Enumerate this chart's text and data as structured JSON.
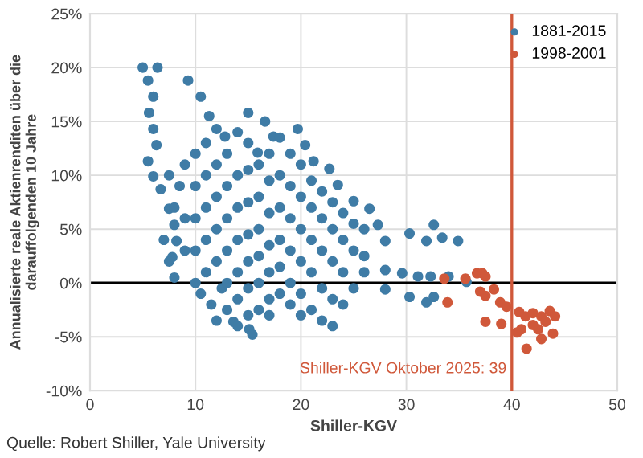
{
  "chart_data": {
    "type": "scatter",
    "xlabel": "Shiller-KGV",
    "ylabel": "Annualisierte reale Aktienrenditen über die\ndarauffolgenden 10 Jahre",
    "xlim": [
      0,
      50
    ],
    "xticks": [
      0,
      10,
      20,
      30,
      40,
      50
    ],
    "ylim": [
      -10,
      25
    ],
    "yticks": [
      {
        "value": -10,
        "label": "-10%"
      },
      {
        "value": -5,
        "label": "-5%"
      },
      {
        "value": 0,
        "label": "0%"
      },
      {
        "value": 5,
        "label": "5%"
      },
      {
        "value": 10,
        "label": "10%"
      },
      {
        "value": 15,
        "label": "15%"
      },
      {
        "value": 20,
        "label": "20%"
      },
      {
        "value": 25,
        "label": "25%"
      }
    ],
    "grid": true,
    "legend": "top right",
    "marker": "circle",
    "ref_lines": [
      {
        "axis": "y",
        "value": 0,
        "color": "#000000"
      },
      {
        "axis": "x",
        "value": 40,
        "color": "#d0583a"
      }
    ],
    "annotations": [
      "Quelle: Robert Shiller, Yale University",
      {
        "text": "Shiller-KGV Oktober 2025: 39",
        "x": 40,
        "y": -8
      }
    ],
    "series": [
      {
        "name": "1881-2015",
        "color": "#3f7ca6",
        "x": [
          5,
          6.4,
          5.5,
          6,
          5.6,
          6,
          6.3,
          5.5,
          6,
          6.7,
          7.5,
          8,
          8.2,
          7.8,
          9.3,
          10.5,
          11.3,
          12,
          12.8,
          15,
          16.6,
          17.4,
          15.9,
          19.7,
          20.4,
          21.2,
          22.7,
          23.5,
          25,
          26.5,
          27.3,
          28,
          30.3,
          31.9,
          32.6,
          33.4,
          34.9,
          28,
          29.6,
          31.1,
          32.3,
          34,
          35.7,
          30.3,
          31.9,
          32.6,
          28,
          13.6,
          15.1,
          15.4,
          7.5,
          8,
          8.5,
          7,
          7.5,
          8,
          9,
          9,
          9,
          10,
          10,
          10,
          10,
          10,
          10.5,
          11,
          11,
          11,
          11,
          11,
          11.5,
          12,
          12,
          12,
          12,
          12,
          12.5,
          13,
          13,
          13,
          13,
          13,
          13,
          14,
          14,
          14,
          14,
          14,
          14,
          14,
          15,
          15,
          15,
          15,
          15,
          15,
          15,
          16,
          16,
          16,
          16,
          16,
          16,
          17,
          17,
          17,
          17,
          17,
          17,
          17,
          18,
          18,
          18,
          18,
          18,
          18,
          19,
          19,
          19,
          19,
          19,
          19,
          20,
          20,
          20,
          20,
          20,
          20,
          21,
          21,
          21,
          21,
          21,
          22,
          22,
          22,
          22,
          22,
          23,
          23,
          23,
          23,
          23,
          24,
          24,
          24,
          24,
          25,
          25,
          25,
          26,
          26,
          26
        ],
        "values": [
          20,
          20,
          18.8,
          17.3,
          15.8,
          14.3,
          12.8,
          11.3,
          9.9,
          8.7,
          6.9,
          5.4,
          3.9,
          2.4,
          18.8,
          17.3,
          15.5,
          14.3,
          13.6,
          15.8,
          15,
          13.6,
          12.1,
          14.3,
          12.8,
          11.3,
          10.6,
          9.1,
          7.6,
          6.9,
          5.4,
          3.9,
          4.6,
          3.9,
          5.4,
          4.2,
          3.9,
          1.2,
          0.9,
          0.6,
          0.6,
          0.6,
          0.1,
          -1.3,
          -1.8,
          -1.3,
          -0.6,
          -3.6,
          -4.3,
          -4.8,
          10,
          7,
          9,
          4,
          2,
          0.5,
          11,
          6,
          3,
          12,
          9,
          6,
          3,
          0,
          -1,
          13,
          10,
          7,
          4,
          1,
          -2,
          -3.5,
          11,
          8,
          5,
          2,
          -0.5,
          12,
          9,
          6,
          3,
          0,
          -2.5,
          14,
          10,
          7,
          4,
          1,
          -1.5,
          -4,
          13,
          10.5,
          7.5,
          4.5,
          2,
          -0.5,
          -3,
          11,
          8,
          5,
          2.5,
          0,
          -2.5,
          12,
          9.5,
          6.5,
          3.5,
          1,
          -1.5,
          -3,
          13.5,
          10,
          7,
          4,
          1.5,
          -1,
          12,
          9,
          6,
          3,
          0,
          -2,
          11,
          8,
          5,
          2,
          -1,
          -3,
          9.5,
          7,
          4,
          1,
          -2.5,
          8.5,
          6,
          3,
          -0.5,
          -3.5,
          7.5,
          5,
          2,
          -1.5,
          -4,
          6.5,
          4,
          1,
          -2,
          5.5,
          3,
          -0.5,
          5,
          2.5,
          1
        ]
      },
      {
        "name": "1998-2001",
        "color": "#d0583a",
        "x": [
          33.6,
          33.9,
          35.6,
          36.7,
          37.2,
          37.5,
          37,
          37.5,
          38.3,
          38.9,
          39.5,
          37.5,
          39,
          40.7,
          41.3,
          42,
          42.3,
          42.8,
          43.6,
          44.1,
          40.5,
          40.9,
          41.4,
          42.5,
          42.8,
          43.9,
          42,
          43.2
        ],
        "values": [
          0.4,
          -1.8,
          0.4,
          0.9,
          0.9,
          0.6,
          -0.8,
          -1.2,
          -0.6,
          -1.8,
          -2.2,
          -3.6,
          -3.8,
          -2.7,
          -3.1,
          -2.8,
          null,
          -3.1,
          -2.6,
          -3.1,
          -4.6,
          -4.3,
          -6.1,
          -4.3,
          -5.2,
          -4.7,
          -3.9,
          -3.6
        ]
      }
    ]
  }
}
